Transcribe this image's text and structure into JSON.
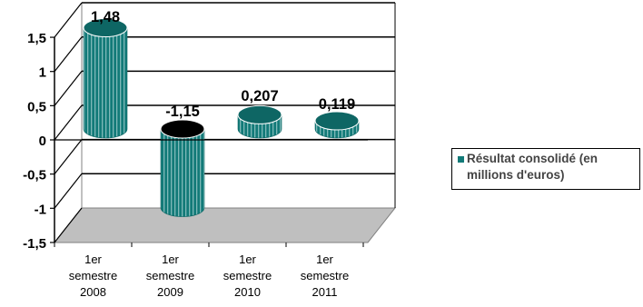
{
  "chart_data": {
    "type": "bar",
    "categories": [
      [
        "1er",
        "semestre",
        "2008"
      ],
      [
        "1er",
        "semestre",
        "2009"
      ],
      [
        "1er",
        "semestre",
        "2010"
      ],
      [
        "1er",
        "semestre",
        "2011"
      ]
    ],
    "series": [
      {
        "name": "Résultat consolidé (en millions d'euros)",
        "values": [
          1.48,
          -1.15,
          0.207,
          0.119
        ]
      }
    ],
    "data_labels": [
      "1,48",
      "-1,15",
      "0,207",
      "0,119"
    ],
    "y_ticks": [
      1.5,
      1,
      0.5,
      0,
      -0.5,
      -1,
      -1.5
    ],
    "y_tick_labels": [
      "1,5",
      "1",
      "0,5",
      "0",
      "-0,5",
      "-1",
      "-1,5"
    ],
    "ylim": [
      -1.5,
      1.5
    ],
    "grid": true,
    "legend_position": "right",
    "style": "3d-cylinder",
    "colors": {
      "bar_side": "#127a78",
      "bar_top": "#0e6664",
      "bar_stripe": "#d9ecec",
      "negative_top": "#000000",
      "floor": "#bfbfbf",
      "axis": "#000000"
    }
  },
  "legend": {
    "label": "Résultat consolidé (en millions d'euros)",
    "color": "#127a78"
  }
}
